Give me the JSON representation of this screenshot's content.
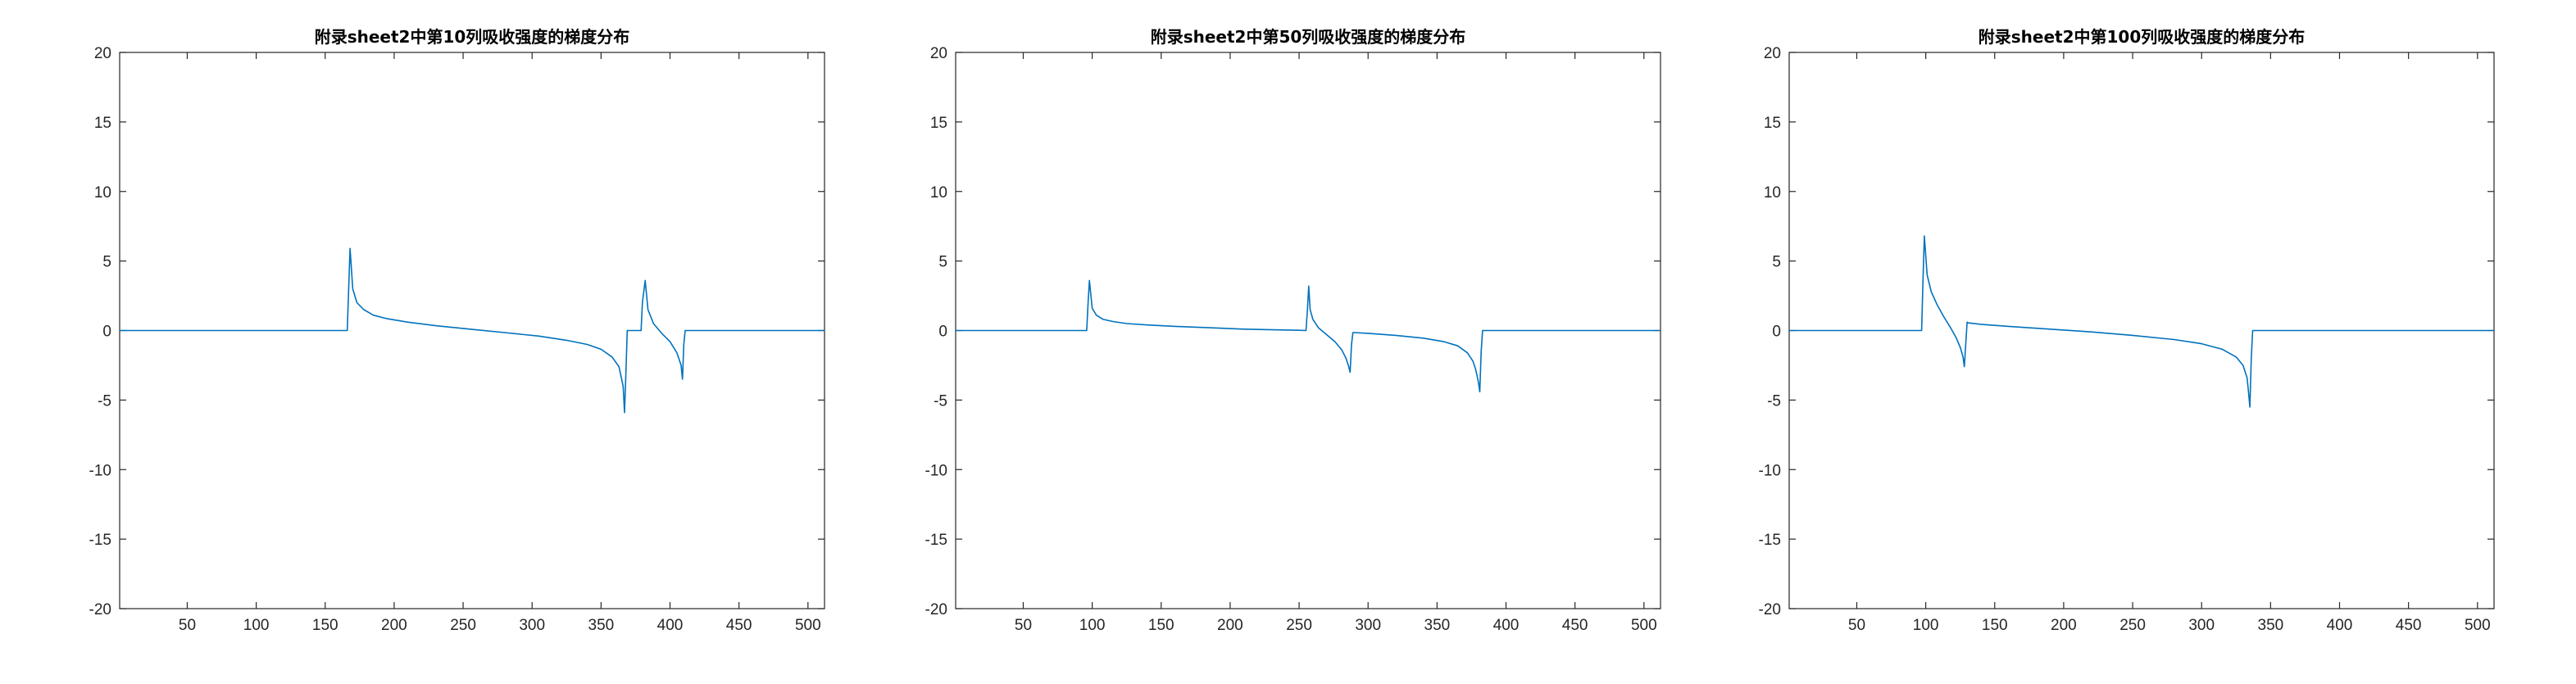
{
  "chart_data": [
    {
      "type": "line",
      "title": "附录sheet2中第10列吸收强度的梯度分布",
      "xlim": [
        1,
        512
      ],
      "ylim": [
        -20,
        20
      ],
      "xticks": [
        50,
        100,
        150,
        200,
        250,
        300,
        350,
        400,
        450,
        500
      ],
      "yticks": [
        -20,
        -15,
        -10,
        -5,
        0,
        5,
        10,
        15,
        20
      ],
      "grid": false,
      "color": "#0072BD",
      "series": [
        {
          "x": [
            1,
            166,
            167,
            168,
            170,
            173,
            178,
            185,
            195,
            210,
            230,
            255,
            280,
            305,
            325,
            340,
            350,
            358,
            363,
            366,
            367,
            368,
            369,
            372,
            377,
            379,
            380,
            382,
            384,
            388,
            394,
            400,
            405,
            408,
            409,
            410,
            411,
            450,
            512
          ],
          "y": [
            0,
            0,
            3.0,
            5.9,
            3.0,
            2.0,
            1.5,
            1.1,
            0.85,
            0.6,
            0.35,
            0.1,
            -0.15,
            -0.4,
            -0.7,
            -1.0,
            -1.35,
            -1.9,
            -2.6,
            -4.0,
            -5.9,
            -3.0,
            0,
            0,
            0,
            0,
            2.0,
            3.6,
            1.5,
            0.5,
            -0.2,
            -0.8,
            -1.6,
            -2.5,
            -3.5,
            -1.0,
            0,
            0,
            0
          ]
        }
      ]
    },
    {
      "type": "line",
      "title": "附录sheet2中第50列吸收强度的梯度分布",
      "xlim": [
        1,
        512
      ],
      "ylim": [
        -20,
        20
      ],
      "xticks": [
        50,
        100,
        150,
        200,
        250,
        300,
        350,
        400,
        450,
        500
      ],
      "yticks": [
        -20,
        -15,
        -10,
        -5,
        0,
        5,
        10,
        15,
        20
      ],
      "grid": false,
      "color": "#0072BD",
      "series": [
        {
          "x": [
            1,
            96,
            97,
            98,
            100,
            103,
            108,
            115,
            125,
            140,
            160,
            185,
            210,
            235,
            250,
            255,
            256,
            257,
            258,
            260,
            264,
            270,
            276,
            281,
            284,
            286,
            287,
            288,
            289,
            290,
            300,
            320,
            340,
            355,
            365,
            372,
            376,
            378,
            380,
            381,
            382,
            383,
            450,
            512
          ],
          "y": [
            0,
            0,
            2.0,
            3.6,
            1.6,
            1.1,
            0.8,
            0.65,
            0.5,
            0.4,
            0.3,
            0.2,
            0.1,
            0.05,
            0.02,
            0,
            1.5,
            3.2,
            1.5,
            0.8,
            0.2,
            -0.3,
            -0.8,
            -1.4,
            -2.0,
            -2.6,
            -3.0,
            -1.0,
            -0.15,
            -0.15,
            -0.2,
            -0.35,
            -0.55,
            -0.8,
            -1.1,
            -1.6,
            -2.2,
            -2.8,
            -3.7,
            -4.4,
            -1.5,
            0,
            0,
            0
          ]
        }
      ]
    },
    {
      "type": "line",
      "title": "附录sheet2中第100列吸收强度的梯度分布",
      "xlim": [
        1,
        512
      ],
      "ylim": [
        -20,
        20
      ],
      "xticks": [
        50,
        100,
        150,
        200,
        250,
        300,
        350,
        400,
        450,
        500
      ],
      "yticks": [
        -20,
        -15,
        -10,
        -5,
        0,
        5,
        10,
        15,
        20
      ],
      "grid": false,
      "color": "#0072BD",
      "series": [
        {
          "x": [
            1,
            97,
            98,
            99,
            101,
            104,
            108,
            113,
            118,
            122,
            125,
            127,
            128,
            129,
            130,
            131,
            140,
            160,
            190,
            220,
            250,
            280,
            300,
            315,
            325,
            330,
            333,
            334,
            335,
            336,
            337,
            400,
            512
          ],
          "y": [
            0,
            0,
            3.5,
            6.8,
            4.0,
            2.8,
            1.9,
            1.0,
            0.2,
            -0.5,
            -1.2,
            -1.9,
            -2.6,
            -1.0,
            0.6,
            0.55,
            0.45,
            0.3,
            0.1,
            -0.1,
            -0.35,
            -0.65,
            -0.95,
            -1.35,
            -1.9,
            -2.5,
            -3.4,
            -4.4,
            -5.5,
            -2.0,
            0,
            0,
            0
          ]
        }
      ]
    }
  ]
}
